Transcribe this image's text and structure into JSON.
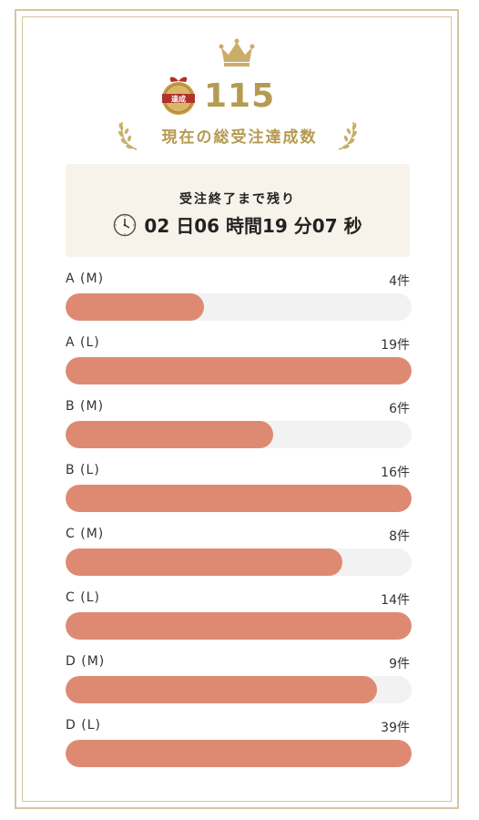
{
  "header": {
    "badge_text": "達成",
    "total": "115",
    "subtitle": "現在の総受注達成数"
  },
  "countdown": {
    "label": "受注終了まで残り",
    "time": "02 日06 時間19 分07 秒"
  },
  "rows": [
    {
      "label": "A (M)",
      "count": "4件",
      "progress": 0.4
    },
    {
      "label": "A (L)",
      "count": "19件",
      "progress": 1.0
    },
    {
      "label": "B (M)",
      "count": "6件",
      "progress": 0.6
    },
    {
      "label": "B (L)",
      "count": "16件",
      "progress": 1.0
    },
    {
      "label": "C (M)",
      "count": "8件",
      "progress": 0.8
    },
    {
      "label": "C (L)",
      "count": "14件",
      "progress": 1.0
    },
    {
      "label": "D (M)",
      "count": "9件",
      "progress": 0.9
    },
    {
      "label": "D (L)",
      "count": "39件",
      "progress": 1.0
    }
  ],
  "colors": {
    "gold": "#b59a52",
    "bar_fill": "#de8a72",
    "bar_track": "#f2f2f2",
    "countdown_bg": "#f8f3ea"
  }
}
